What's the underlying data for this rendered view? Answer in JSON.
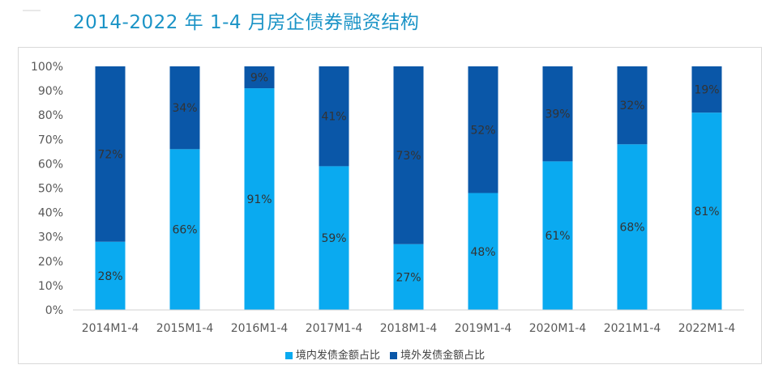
{
  "title": "2014-2022 年 1-4 月房企债券融资结构",
  "colors": {
    "domestic": "#0aaaf0",
    "overseas": "#0a57a8",
    "axis_text": "#595959",
    "label_text": "#333333"
  },
  "legend": [
    {
      "name": "境内发债金额占比",
      "color": "#0aaaf0"
    },
    {
      "name": "境外发债金额占比",
      "color": "#0a57a8"
    }
  ],
  "chart_data": {
    "type": "bar",
    "stacked": true,
    "categories": [
      "2014M1-4",
      "2015M1-4",
      "2016M1-4",
      "2017M1-4",
      "2018M1-4",
      "2019M1-4",
      "2020M1-4",
      "2021M1-4",
      "2022M1-4"
    ],
    "series": [
      {
        "name": "境内发债金额占比",
        "values": [
          28,
          66,
          91,
          59,
          27,
          48,
          61,
          68,
          81
        ]
      },
      {
        "name": "境外发债金额占比",
        "values": [
          72,
          34,
          9,
          41,
          73,
          52,
          39,
          32,
          19
        ]
      }
    ],
    "y_ticks": [
      "0%",
      "10%",
      "20%",
      "30%",
      "40%",
      "50%",
      "60%",
      "70%",
      "80%",
      "90%",
      "100%"
    ],
    "ylim": [
      0,
      100
    ],
    "value_suffix": "%",
    "grid": false,
    "legend_position": "bottom"
  }
}
